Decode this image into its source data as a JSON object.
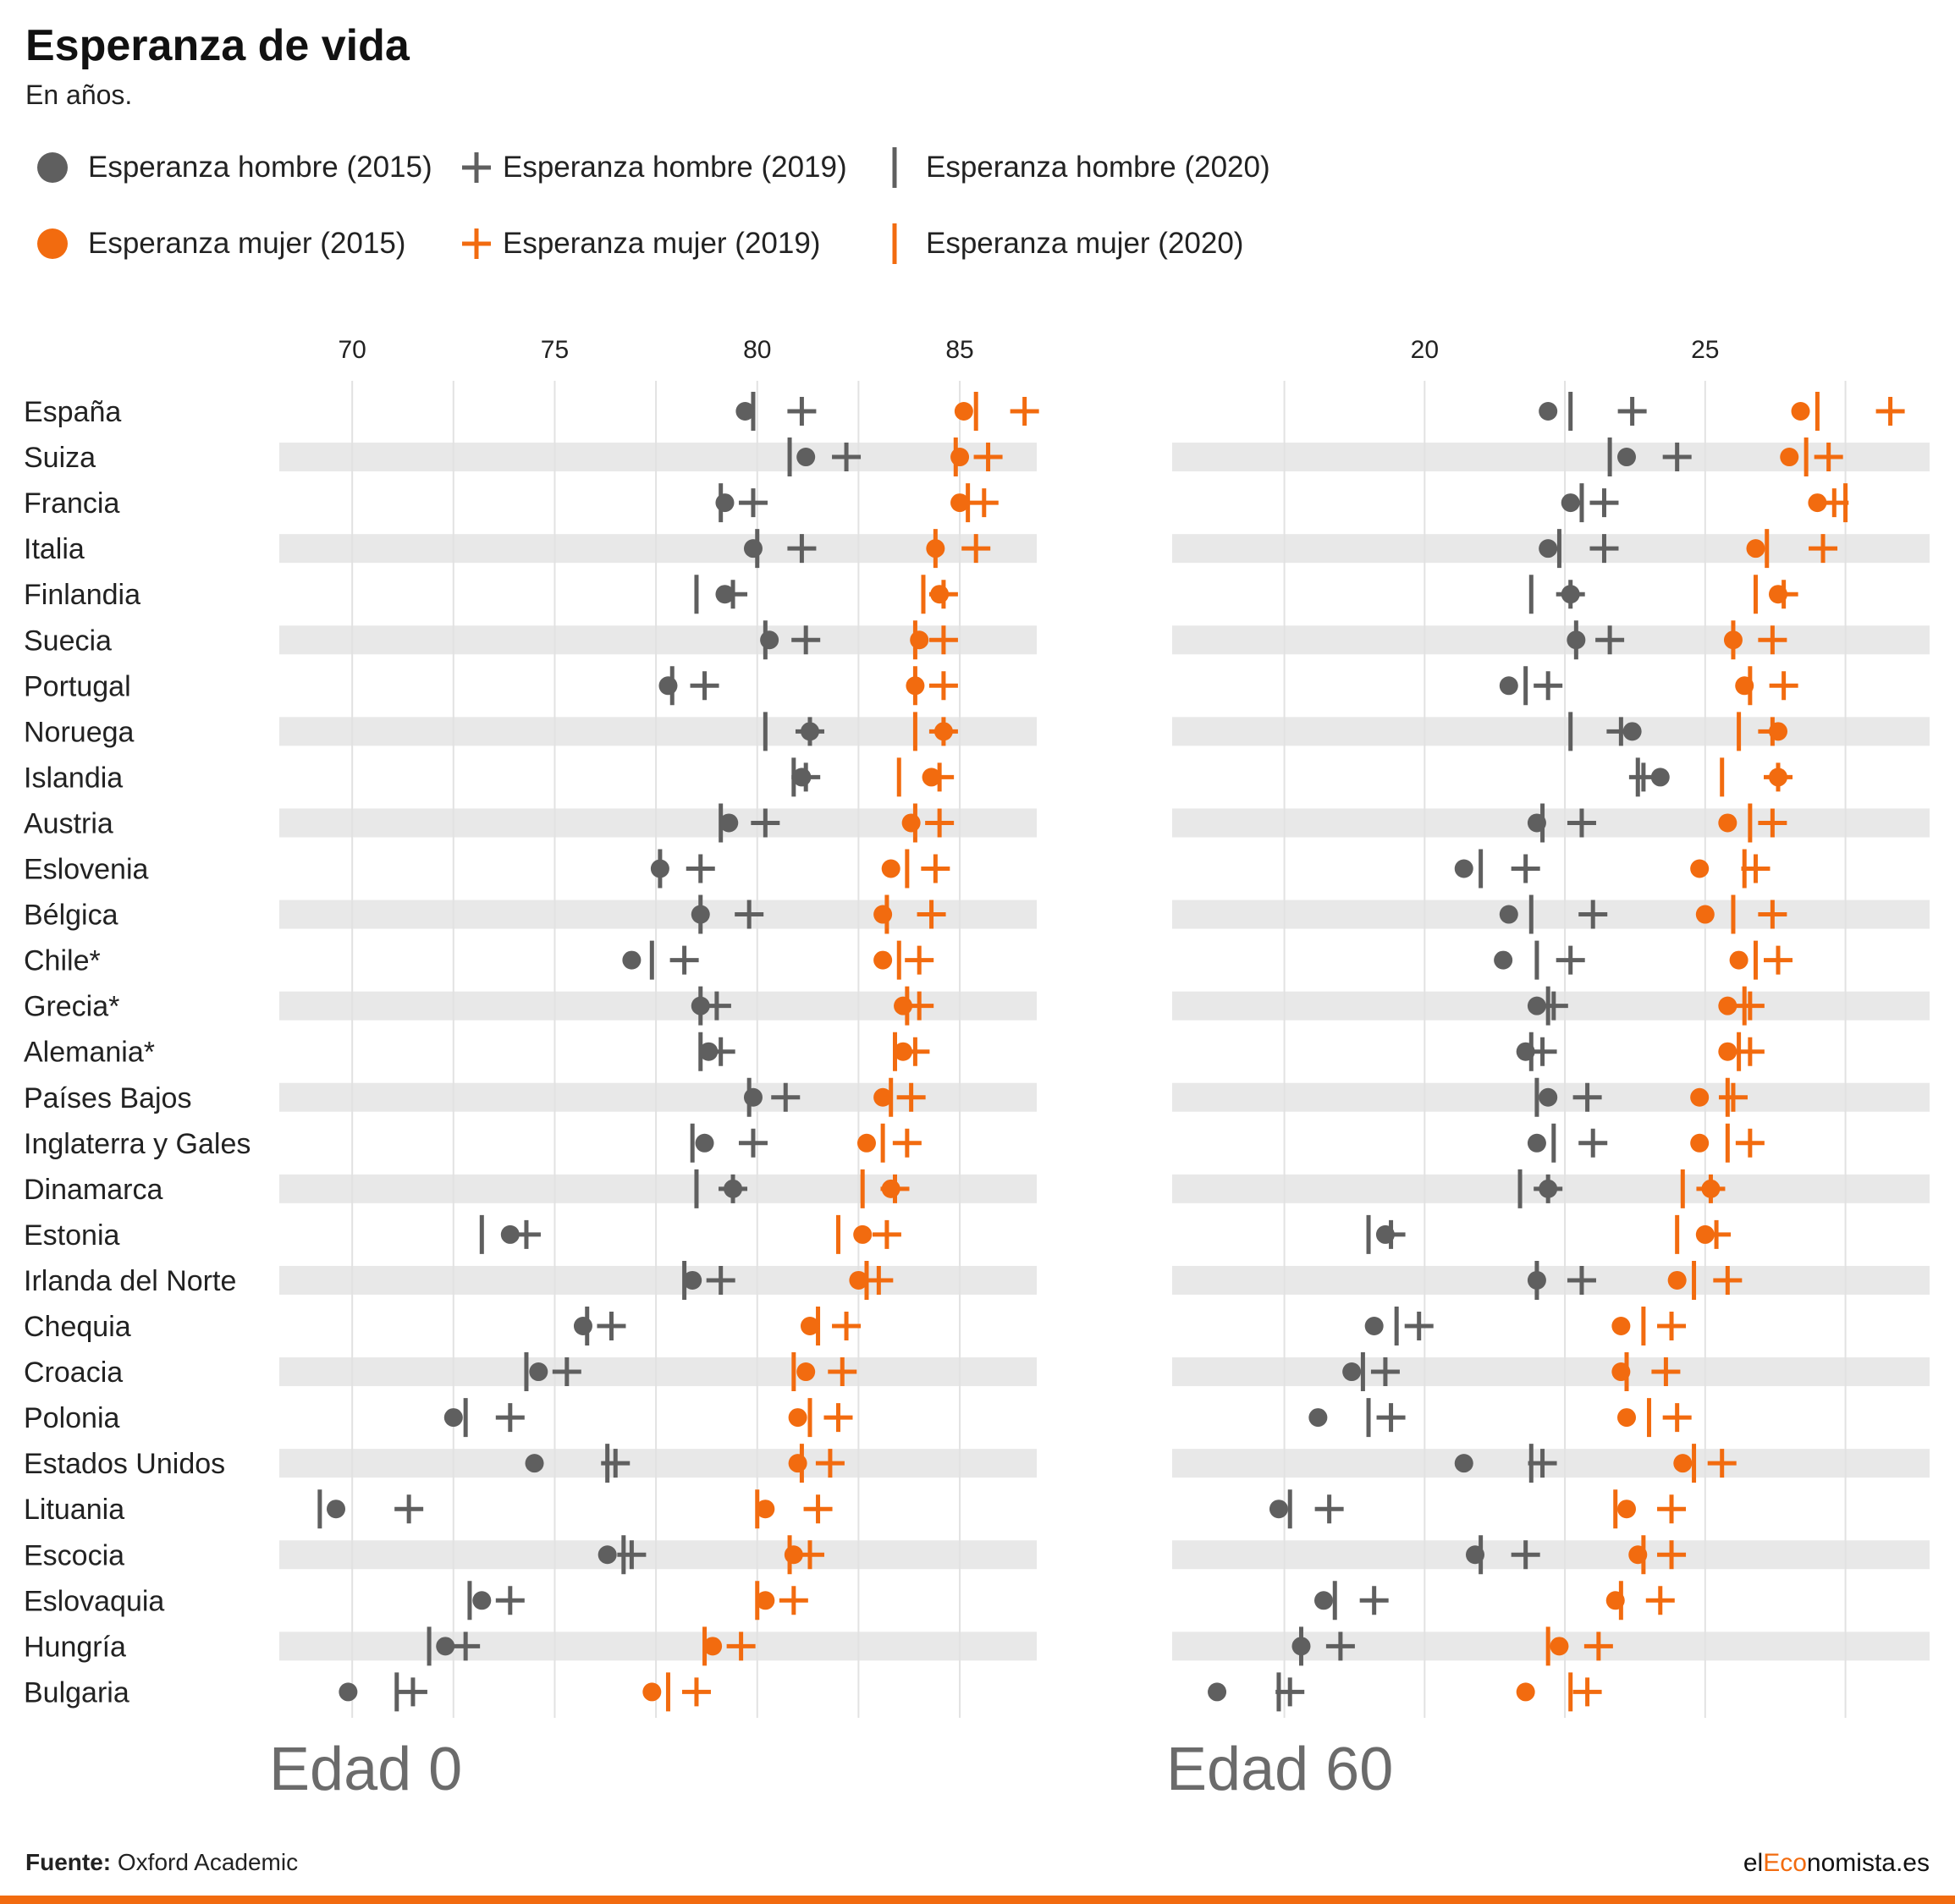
{
  "title": "Esperanza de vida",
  "subtitle": "En años.",
  "legend": [
    {
      "label": "Esperanza hombre (2015)",
      "symbol": "dot",
      "color": "#5f5f5f"
    },
    {
      "label": "Esperanza hombre (2019)",
      "symbol": "plus",
      "color": "#5f5f5f"
    },
    {
      "label": "Esperanza hombre (2020)",
      "symbol": "bar",
      "color": "#5f5f5f"
    },
    {
      "label": "Esperanza mujer (2015)",
      "symbol": "dot",
      "color": "#f26b0f"
    },
    {
      "label": "Esperanza mujer (2019)",
      "symbol": "plus",
      "color": "#f26b0f"
    },
    {
      "label": "Esperanza mujer (2020)",
      "symbol": "bar",
      "color": "#f26b0f"
    }
  ],
  "footer": {
    "source_label": "Fuente:",
    "source_text": "Oxford Academic"
  },
  "brand": {
    "prefix": "el",
    "accent": "Eco",
    "suffix": "nomista.es"
  },
  "colors": {
    "men": "#5f5f5f",
    "women": "#f26b0f",
    "band": "#e8e8e8",
    "grid": "#e2e2e2"
  },
  "chart_data": [
    {
      "type": "dot-range",
      "panel_label": "Edad 0",
      "xticks": [
        70,
        75,
        80,
        85
      ],
      "xlim": [
        68.2,
        86.9
      ],
      "categories": [
        "España",
        "Suiza",
        "Francia",
        "Italia",
        "Finlandia",
        "Suecia",
        "Portugal",
        "Noruega",
        "Islandia",
        "Austria",
        "Eslovenia",
        "Bélgica",
        "Chile*",
        "Grecia*",
        "Alemania*",
        "Países Bajos",
        "Inglaterra y Gales",
        "Dinamarca",
        "Estonia",
        "Irlanda del Norte",
        "Chequia",
        "Croacia",
        "Polonia",
        "Estados Unidos",
        "Lituania",
        "Escocia",
        "Eslovaquia",
        "Hungría",
        "Bulgaria"
      ],
      "series": [
        {
          "name": "Esperanza hombre (2015)",
          "values": [
            79.7,
            81.2,
            79.2,
            79.9,
            79.2,
            80.3,
            77.8,
            81.3,
            81.1,
            79.3,
            77.6,
            78.6,
            76.9,
            78.6,
            78.8,
            79.9,
            78.7,
            79.4,
            73.9,
            78.4,
            75.7,
            74.6,
            72.5,
            74.5,
            69.6,
            76.3,
            73.2,
            72.3,
            69.9
          ]
        },
        {
          "name": "Esperanza hombre (2019)",
          "values": [
            81.1,
            82.2,
            79.9,
            81.1,
            79.4,
            81.2,
            78.7,
            81.3,
            81.2,
            80.2,
            78.6,
            79.8,
            78.2,
            79.0,
            79.1,
            80.7,
            79.9,
            79.4,
            74.3,
            79.1,
            76.4,
            75.3,
            73.9,
            76.5,
            71.4,
            76.9,
            73.9,
            72.8,
            71.5
          ]
        },
        {
          "name": "Esperanza hombre (2020)",
          "values": [
            79.9,
            80.8,
            79.1,
            80.0,
            78.5,
            80.2,
            77.9,
            80.2,
            80.9,
            79.1,
            77.6,
            78.6,
            77.4,
            78.6,
            78.6,
            79.8,
            78.4,
            78.5,
            73.2,
            78.2,
            75.8,
            74.3,
            72.8,
            76.3,
            69.2,
            76.7,
            72.9,
            71.9,
            71.1
          ]
        },
        {
          "name": "Esperanza mujer (2015)",
          "values": [
            85.1,
            85.0,
            85.0,
            84.4,
            84.5,
            84.0,
            83.9,
            84.6,
            84.3,
            83.8,
            83.3,
            83.1,
            83.1,
            83.6,
            83.6,
            83.1,
            82.7,
            83.3,
            82.6,
            82.5,
            81.3,
            81.2,
            81.0,
            81.0,
            80.2,
            80.9,
            80.2,
            78.9,
            77.4
          ]
        },
        {
          "name": "Esperanza mujer (2019)",
          "values": [
            86.6,
            85.7,
            85.6,
            85.4,
            84.6,
            84.6,
            84.6,
            84.6,
            84.5,
            84.5,
            84.4,
            84.3,
            84.0,
            84.0,
            83.9,
            83.8,
            83.7,
            83.4,
            83.2,
            83.0,
            82.2,
            82.1,
            82.0,
            81.8,
            81.5,
            81.3,
            80.9,
            79.6,
            78.5
          ]
        },
        {
          "name": "Esperanza mujer (2020)",
          "values": [
            85.4,
            84.9,
            85.2,
            84.4,
            84.1,
            83.9,
            83.9,
            83.9,
            83.5,
            83.9,
            83.7,
            83.2,
            83.5,
            83.7,
            83.4,
            83.3,
            83.1,
            82.6,
            82.0,
            82.7,
            81.5,
            80.9,
            81.3,
            81.1,
            80.0,
            80.8,
            80.0,
            78.7,
            77.8
          ]
        }
      ]
    },
    {
      "type": "dot-range",
      "panel_label": "Edad 60",
      "xticks": [
        20,
        25
      ],
      "xlim": [
        15.5,
        29.0
      ],
      "categories": [
        "España",
        "Suiza",
        "Francia",
        "Italia",
        "Finlandia",
        "Suecia",
        "Portugal",
        "Noruega",
        "Islandia",
        "Austria",
        "Eslovenia",
        "Bélgica",
        "Chile*",
        "Grecia*",
        "Alemania*",
        "Países Bajos",
        "Inglaterra y Gales",
        "Dinamarca",
        "Estonia",
        "Irlanda del Norte",
        "Chequia",
        "Croacia",
        "Polonia",
        "Estados Unidos",
        "Lituania",
        "Escocia",
        "Eslovaquia",
        "Hungría",
        "Bulgaria"
      ],
      "series": [
        {
          "name": "Esperanza hombre (2015)",
          "values": [
            22.2,
            23.6,
            22.6,
            22.2,
            22.6,
            22.7,
            21.5,
            23.7,
            24.2,
            22.0,
            20.7,
            21.5,
            21.4,
            22.0,
            21.8,
            22.2,
            22.0,
            22.2,
            19.3,
            22.0,
            19.1,
            18.7,
            18.1,
            20.7,
            17.4,
            20.9,
            18.2,
            17.8,
            16.3
          ]
        },
        {
          "name": "Esperanza hombre (2019)",
          "values": [
            23.7,
            24.5,
            23.2,
            23.2,
            22.6,
            23.3,
            22.2,
            23.5,
            23.9,
            22.8,
            21.8,
            23.0,
            22.6,
            22.3,
            22.1,
            22.9,
            23.0,
            22.2,
            19.4,
            22.8,
            19.9,
            19.3,
            19.4,
            22.1,
            18.3,
            21.8,
            19.1,
            18.5,
            17.6
          ]
        },
        {
          "name": "Esperanza hombre (2020)",
          "values": [
            22.6,
            23.3,
            22.8,
            22.4,
            21.9,
            22.7,
            21.8,
            22.6,
            23.8,
            22.1,
            21.0,
            21.9,
            22.0,
            22.2,
            21.9,
            22.0,
            22.3,
            21.7,
            19.0,
            22.0,
            19.5,
            18.9,
            19.0,
            21.9,
            17.6,
            21.0,
            18.4,
            17.8,
            17.4
          ]
        },
        {
          "name": "Esperanza mujer (2015)",
          "values": [
            26.7,
            26.5,
            27.0,
            25.9,
            26.3,
            25.5,
            25.7,
            26.3,
            26.3,
            25.4,
            24.9,
            25.0,
            25.6,
            25.4,
            25.4,
            24.9,
            24.9,
            25.1,
            25.0,
            24.5,
            23.5,
            23.5,
            23.6,
            24.6,
            23.6,
            23.8,
            23.4,
            22.4,
            21.8
          ]
        },
        {
          "name": "Esperanza mujer (2019)",
          "values": [
            28.3,
            27.2,
            27.3,
            27.1,
            26.4,
            26.2,
            26.4,
            26.2,
            26.3,
            26.2,
            25.9,
            26.2,
            26.3,
            25.8,
            25.8,
            25.5,
            25.8,
            25.1,
            25.2,
            25.4,
            24.4,
            24.3,
            24.5,
            25.3,
            24.4,
            24.4,
            24.2,
            23.1,
            22.9
          ]
        },
        {
          "name": "Esperanza mujer (2020)",
          "values": [
            27.0,
            26.8,
            27.5,
            26.1,
            25.9,
            25.5,
            25.8,
            25.6,
            25.3,
            25.8,
            25.7,
            25.5,
            25.9,
            25.7,
            25.6,
            25.4,
            25.4,
            24.6,
            24.5,
            24.8,
            23.9,
            23.6,
            24.0,
            24.8,
            23.4,
            23.9,
            23.5,
            22.2,
            22.6
          ]
        }
      ]
    }
  ]
}
